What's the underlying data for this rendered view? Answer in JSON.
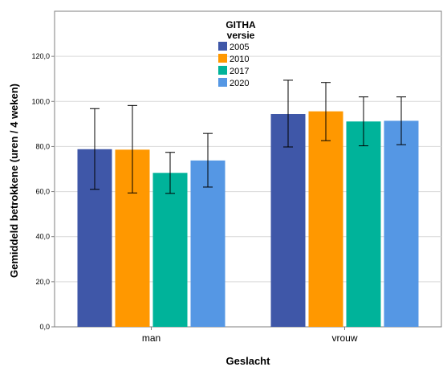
{
  "chart_data": {
    "type": "bar",
    "title": "",
    "xlabel": "Geslacht",
    "ylabel": "Gemiddeld betrokkene (uren / 4 weken)",
    "categories": [
      "man",
      "vrouw"
    ],
    "ylim": [
      0,
      140
    ],
    "yticks": [
      "0,0",
      "20,0",
      "40,0",
      "60,0",
      "80,0",
      "100,0",
      "120,0"
    ],
    "grid": true,
    "legend": {
      "title_line1": "GITHA",
      "title_line2": "versie",
      "placement": "top-center"
    },
    "series": [
      {
        "name": "2005",
        "color": "#3f57a8",
        "values": [
          78.8,
          94.4
        ],
        "err_low": [
          61.0,
          79.8
        ],
        "err_high": [
          96.8,
          109.4
        ]
      },
      {
        "name": "2010",
        "color": "#ff9800",
        "values": [
          78.6,
          95.6
        ],
        "err_low": [
          59.4,
          82.6
        ],
        "err_high": [
          98.2,
          108.4
        ]
      },
      {
        "name": "2017",
        "color": "#00b39a",
        "values": [
          68.3,
          91.1
        ],
        "err_low": [
          59.2,
          80.3
        ],
        "err_high": [
          77.4,
          102.0
        ]
      },
      {
        "name": "2020",
        "color": "#5597e4",
        "values": [
          73.8,
          91.4
        ],
        "err_low": [
          62.0,
          80.8
        ],
        "err_high": [
          85.8,
          102.0
        ]
      }
    ]
  }
}
